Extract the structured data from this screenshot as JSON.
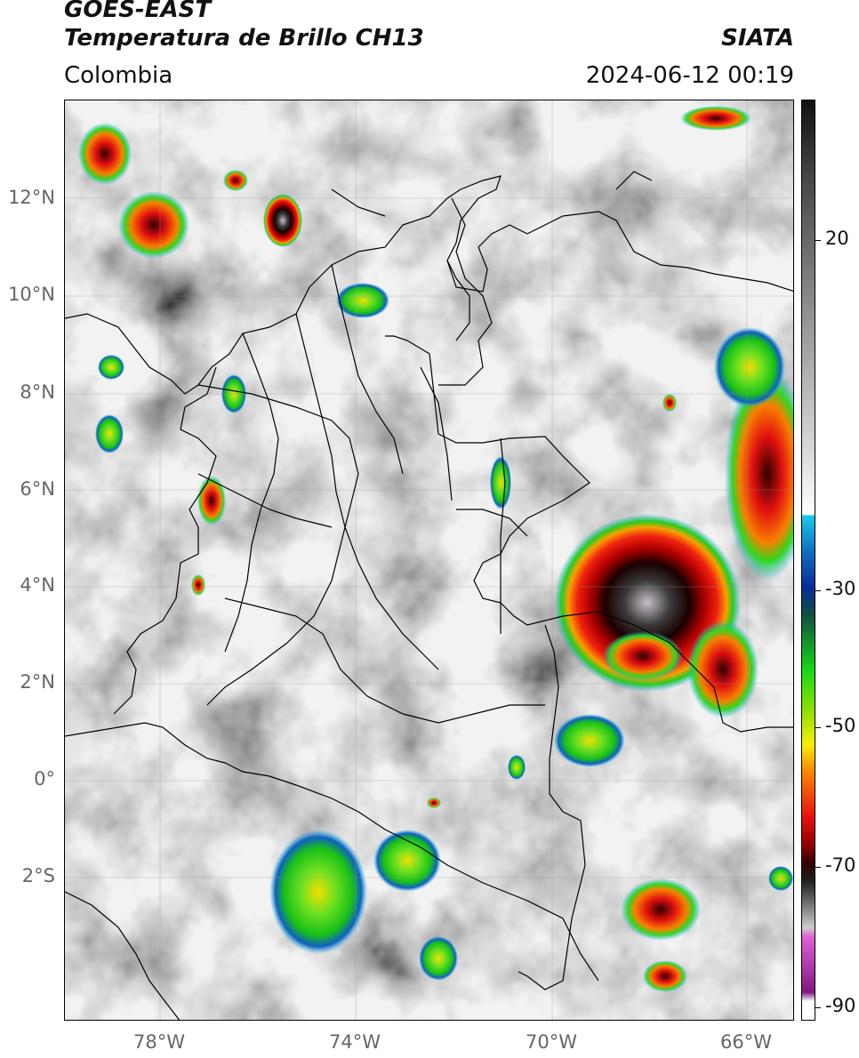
{
  "header": {
    "satellite": "GOES-EAST",
    "product": "Temperatura de Brillo CH13",
    "region": "Colombia",
    "brand": "SIATA",
    "timestamp": "2024-06-12 00:19"
  },
  "map": {
    "lat_ticks": [
      "12°N",
      "10°N",
      "8°N",
      "6°N",
      "4°N",
      "2°N",
      "0°",
      "2°S"
    ],
    "lon_ticks": [
      "78°W",
      "74°W",
      "70°W",
      "66°W"
    ]
  },
  "colorbar": {
    "labels": [
      "20",
      "-30",
      "-50",
      "-70",
      "-90"
    ],
    "colors": {
      "warm_top": "#111111",
      "gray_mid": "#9a9a9a",
      "light": "#ffffff",
      "cyan": "#19c8f0",
      "blue": "#0a2a9a",
      "green": "#18d818",
      "yellow": "#f8f000",
      "orange": "#f88800",
      "red": "#e81010",
      "dark_red": "#300000",
      "magenta": "#e060d8",
      "purple": "#801880"
    }
  }
}
